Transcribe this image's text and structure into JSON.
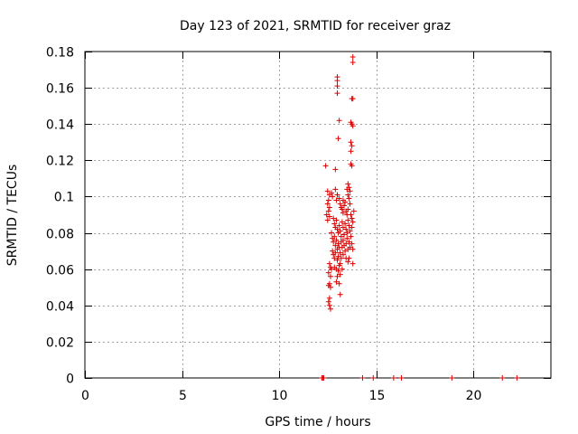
{
  "chart_data": {
    "type": "scatter",
    "title": "Day 123 of 2021, SRMTID for receiver graz",
    "xlabel": "GPS time / hours",
    "ylabel": "SRMTID / TECUs",
    "xlim": [
      0,
      24
    ],
    "ylim": [
      0,
      0.18
    ],
    "xticks": [
      0,
      5,
      10,
      15,
      20
    ],
    "xtick_labels": [
      "0",
      "5",
      "10",
      "15",
      "20"
    ],
    "yticks": [
      0,
      0.02,
      0.04,
      0.06,
      0.08,
      0.1,
      0.12,
      0.14,
      0.16,
      0.18
    ],
    "ytick_labels": [
      "0",
      "0.02",
      "0.04",
      "0.06",
      "0.08",
      "0.1",
      "0.12",
      "0.14",
      "0.16",
      "0.18"
    ],
    "grid": true,
    "marker": "+",
    "color": "#dd0000",
    "series": [
      {
        "name": "SRMTID",
        "points": [
          [
            12.2,
            0
          ],
          [
            12.25,
            0
          ],
          [
            12.3,
            0
          ],
          [
            14.3,
            0
          ],
          [
            14.85,
            0
          ],
          [
            15.9,
            0
          ],
          [
            16.3,
            0
          ],
          [
            18.9,
            0
          ],
          [
            21.5,
            0
          ],
          [
            22.25,
            0
          ],
          [
            13.8,
            0.177
          ],
          [
            13.8,
            0.174
          ],
          [
            13.0,
            0.166
          ],
          [
            13.0,
            0.164
          ],
          [
            13.0,
            0.161
          ],
          [
            13.0,
            0.157
          ],
          [
            13.75,
            0.154
          ],
          [
            13.8,
            0.154
          ],
          [
            13.1,
            0.142
          ],
          [
            13.7,
            0.141
          ],
          [
            13.8,
            0.139
          ],
          [
            13.75,
            0.14
          ],
          [
            13.05,
            0.132
          ],
          [
            13.7,
            0.13
          ],
          [
            13.75,
            0.128
          ],
          [
            13.7,
            0.125
          ],
          [
            12.4,
            0.117
          ],
          [
            12.9,
            0.115
          ],
          [
            13.7,
            0.118
          ],
          [
            13.75,
            0.117
          ],
          [
            13.55,
            0.107
          ],
          [
            13.6,
            0.105
          ],
          [
            13.65,
            0.103
          ],
          [
            13.5,
            0.104
          ],
          [
            13.55,
            0.101
          ],
          [
            13.6,
            0.099
          ],
          [
            12.5,
            0.103
          ],
          [
            12.6,
            0.101
          ],
          [
            12.55,
            0.098
          ],
          [
            12.7,
            0.102
          ],
          [
            12.75,
            0.1
          ],
          [
            12.5,
            0.096
          ],
          [
            12.6,
            0.094
          ],
          [
            12.45,
            0.09
          ],
          [
            12.55,
            0.092
          ],
          [
            12.5,
            0.087
          ],
          [
            12.6,
            0.089
          ],
          [
            12.9,
            0.104
          ],
          [
            13.0,
            0.101
          ],
          [
            12.95,
            0.098
          ],
          [
            13.1,
            0.099
          ],
          [
            13.15,
            0.096
          ],
          [
            13.2,
            0.094
          ],
          [
            13.25,
            0.093
          ],
          [
            13.3,
            0.091
          ],
          [
            13.35,
            0.095
          ],
          [
            13.3,
            0.098
          ],
          [
            13.4,
            0.097
          ],
          [
            13.45,
            0.092
          ],
          [
            13.5,
            0.09
          ],
          [
            13.55,
            0.093
          ],
          [
            13.65,
            0.096
          ],
          [
            13.7,
            0.09
          ],
          [
            13.75,
            0.088
          ],
          [
            13.8,
            0.086
          ],
          [
            13.85,
            0.092
          ],
          [
            12.8,
            0.088
          ],
          [
            12.85,
            0.085
          ],
          [
            12.9,
            0.083
          ],
          [
            12.95,
            0.087
          ],
          [
            13.0,
            0.082
          ],
          [
            13.05,
            0.08
          ],
          [
            13.1,
            0.084
          ],
          [
            13.15,
            0.081
          ],
          [
            13.2,
            0.078
          ],
          [
            13.25,
            0.086
          ],
          [
            13.3,
            0.083
          ],
          [
            13.35,
            0.079
          ],
          [
            13.4,
            0.085
          ],
          [
            13.45,
            0.082
          ],
          [
            13.5,
            0.08
          ],
          [
            13.55,
            0.087
          ],
          [
            13.6,
            0.084
          ],
          [
            13.65,
            0.081
          ],
          [
            13.7,
            0.078
          ],
          [
            13.75,
            0.083
          ],
          [
            12.7,
            0.08
          ],
          [
            12.75,
            0.077
          ],
          [
            12.8,
            0.075
          ],
          [
            12.85,
            0.078
          ],
          [
            12.9,
            0.073
          ],
          [
            12.95,
            0.076
          ],
          [
            13.0,
            0.071
          ],
          [
            13.05,
            0.074
          ],
          [
            13.1,
            0.072
          ],
          [
            13.15,
            0.069
          ],
          [
            13.2,
            0.075
          ],
          [
            13.25,
            0.072
          ],
          [
            13.3,
            0.076
          ],
          [
            13.35,
            0.073
          ],
          [
            13.4,
            0.07
          ],
          [
            13.45,
            0.074
          ],
          [
            13.5,
            0.077
          ],
          [
            13.55,
            0.071
          ],
          [
            13.6,
            0.075
          ],
          [
            13.65,
            0.072
          ],
          [
            13.75,
            0.074
          ],
          [
            13.8,
            0.071
          ],
          [
            12.75,
            0.07
          ],
          [
            12.8,
            0.068
          ],
          [
            12.85,
            0.066
          ],
          [
            12.9,
            0.069
          ],
          [
            13.0,
            0.065
          ],
          [
            13.05,
            0.067
          ],
          [
            13.15,
            0.063
          ],
          [
            13.2,
            0.066
          ],
          [
            13.3,
            0.068
          ],
          [
            13.45,
            0.066
          ],
          [
            13.55,
            0.064
          ],
          [
            13.6,
            0.066
          ],
          [
            13.8,
            0.063
          ],
          [
            12.6,
            0.063
          ],
          [
            12.65,
            0.061
          ],
          [
            12.7,
            0.06
          ],
          [
            12.85,
            0.061
          ],
          [
            12.95,
            0.06
          ],
          [
            13.05,
            0.059
          ],
          [
            13.1,
            0.062
          ],
          [
            13.25,
            0.06
          ],
          [
            12.55,
            0.058
          ],
          [
            12.65,
            0.056
          ],
          [
            13.0,
            0.056
          ],
          [
            13.15,
            0.057
          ],
          [
            12.6,
            0.052
          ],
          [
            12.65,
            0.05
          ],
          [
            12.55,
            0.051
          ],
          [
            12.95,
            0.053
          ],
          [
            13.1,
            0.052
          ],
          [
            13.15,
            0.046
          ],
          [
            12.6,
            0.044
          ],
          [
            12.55,
            0.042
          ],
          [
            12.6,
            0.04
          ],
          [
            12.65,
            0.038
          ]
        ]
      }
    ]
  }
}
